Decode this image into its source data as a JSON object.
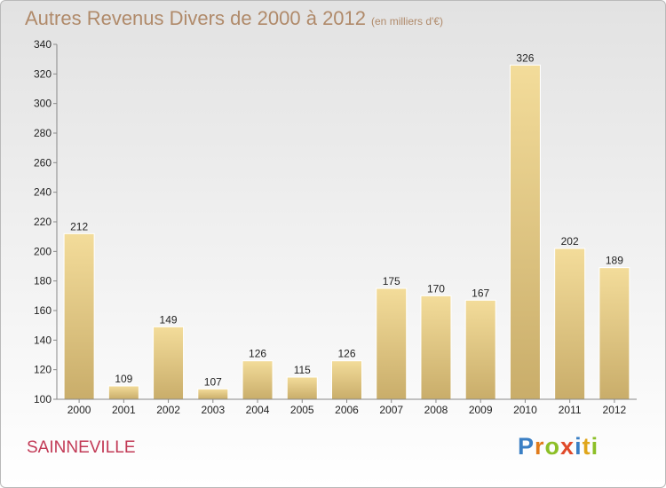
{
  "page": {
    "title": "Autres Revenus Divers de 2000 à 2012",
    "unit": "(en milliers d'€)",
    "commune": "SAINNEVILLE",
    "logo": {
      "letters": [
        "P",
        "r",
        "o",
        "x",
        "i",
        "t",
        "i"
      ],
      "colors": [
        "#3a7fc4",
        "#e07b1b",
        "#8cbf26",
        "#e04a2a",
        "#3a7fc4",
        "#e0a61b",
        "#8cbf26"
      ]
    }
  },
  "chart_data": {
    "type": "bar",
    "title": "Autres Revenus Divers de 2000 à 2012",
    "subtitle": "(en milliers d'€)",
    "categories": [
      "2000",
      "2001",
      "2002",
      "2003",
      "2004",
      "2005",
      "2006",
      "2007",
      "2008",
      "2009",
      "2010",
      "2011",
      "2012"
    ],
    "values": [
      212,
      109,
      149,
      107,
      126,
      115,
      126,
      175,
      170,
      167,
      326,
      202,
      189
    ],
    "ylim": [
      100,
      340
    ],
    "yticks": [
      100,
      120,
      140,
      160,
      180,
      200,
      220,
      240,
      260,
      280,
      300,
      320,
      340
    ],
    "grid": false,
    "legend": "none",
    "colors": {
      "bar_light": "#f3dc9a",
      "bar_dark": "#c9ad6a",
      "axis": "#888888"
    }
  }
}
